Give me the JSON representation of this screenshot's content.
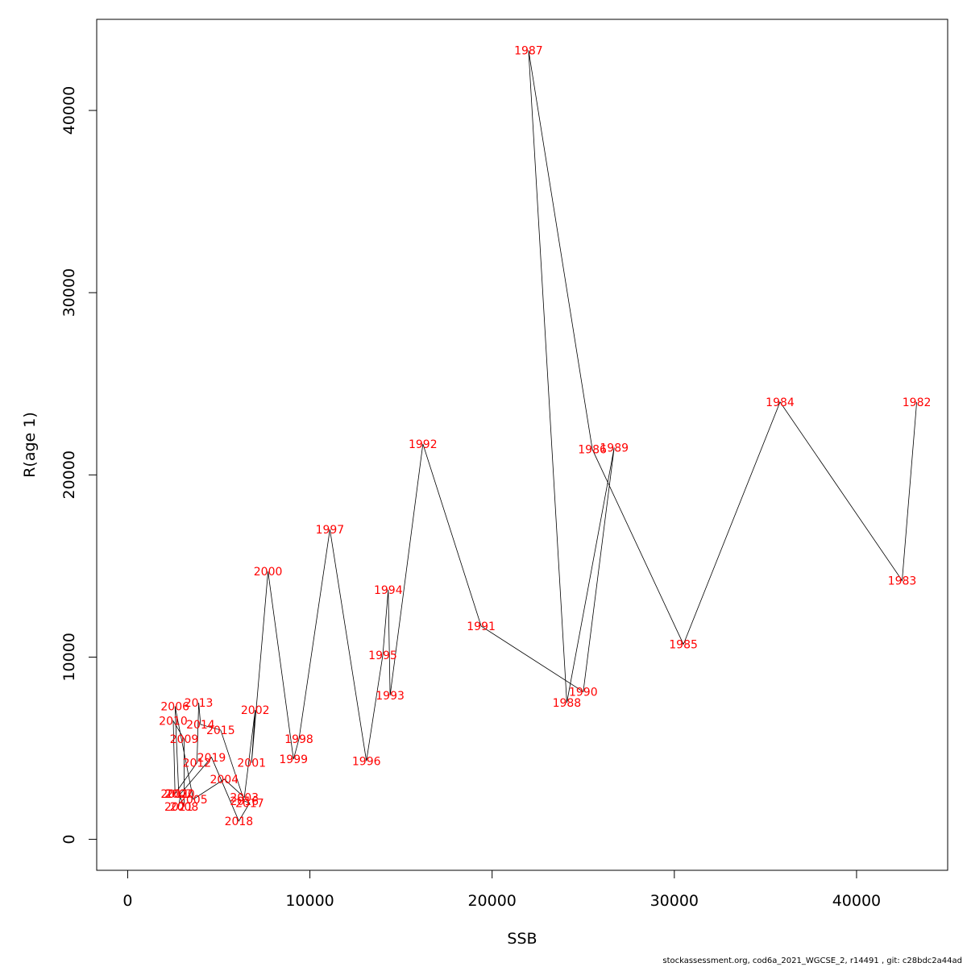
{
  "footer": "stockassessment.org, cod6a_2021_WGCSE_2, r14491 , git: c28bdc2a44ad",
  "chart_data": {
    "type": "scatter",
    "xlabel": "SSB",
    "ylabel": "R(age 1)",
    "xlim": [
      -1700,
      45000
    ],
    "ylim": [
      -1700,
      45000
    ],
    "x_ticks": [
      0,
      10000,
      20000,
      30000,
      40000
    ],
    "y_ticks": [
      0,
      10000,
      20000,
      30000,
      40000
    ],
    "grid": false,
    "point_color": "#ff0000",
    "line_color": "#000000",
    "points": [
      {
        "year": "1982",
        "ssb": 43300,
        "r": 24000
      },
      {
        "year": "1983",
        "ssb": 42500,
        "r": 14200
      },
      {
        "year": "1984",
        "ssb": 35800,
        "r": 24000
      },
      {
        "year": "1985",
        "ssb": 30500,
        "r": 10700
      },
      {
        "year": "1986",
        "ssb": 25500,
        "r": 21400
      },
      {
        "year": "1987",
        "ssb": 22000,
        "r": 43300
      },
      {
        "year": "1988",
        "ssb": 24100,
        "r": 7500
      },
      {
        "year": "1989",
        "ssb": 26700,
        "r": 21500
      },
      {
        "year": "1990",
        "ssb": 25000,
        "r": 8100
      },
      {
        "year": "1991",
        "ssb": 19400,
        "r": 11700
      },
      {
        "year": "1992",
        "ssb": 16200,
        "r": 21700
      },
      {
        "year": "1993",
        "ssb": 14400,
        "r": 7900
      },
      {
        "year": "1994",
        "ssb": 14300,
        "r": 13700
      },
      {
        "year": "1995",
        "ssb": 14000,
        "r": 10100
      },
      {
        "year": "1996",
        "ssb": 13100,
        "r": 4300
      },
      {
        "year": "1997",
        "ssb": 11100,
        "r": 17000
      },
      {
        "year": "1998",
        "ssb": 9400,
        "r": 5500
      },
      {
        "year": "1999",
        "ssb": 9100,
        "r": 4400
      },
      {
        "year": "2000",
        "ssb": 7700,
        "r": 14700
      },
      {
        "year": "2001",
        "ssb": 6800,
        "r": 4200
      },
      {
        "year": "2002",
        "ssb": 7000,
        "r": 7100
      },
      {
        "year": "2003",
        "ssb": 6400,
        "r": 2300
      },
      {
        "year": "2004",
        "ssb": 5300,
        "r": 3300
      },
      {
        "year": "2005",
        "ssb": 3600,
        "r": 2200
      },
      {
        "year": "2006",
        "ssb": 2600,
        "r": 7300
      },
      {
        "year": "2007",
        "ssb": 2800,
        "r": 2500
      },
      {
        "year": "2008",
        "ssb": 3100,
        "r": 1800
      },
      {
        "year": "2009",
        "ssb": 3100,
        "r": 5500
      },
      {
        "year": "2010",
        "ssb": 2500,
        "r": 6500
      },
      {
        "year": "2011",
        "ssb": 2600,
        "r": 2500
      },
      {
        "year": "2012",
        "ssb": 3800,
        "r": 4200
      },
      {
        "year": "2013",
        "ssb": 3900,
        "r": 7500
      },
      {
        "year": "2014",
        "ssb": 4000,
        "r": 6300
      },
      {
        "year": "2015",
        "ssb": 5100,
        "r": 6000
      },
      {
        "year": "2016",
        "ssb": 6400,
        "r": 2100
      },
      {
        "year": "2017",
        "ssb": 6700,
        "r": 2000
      },
      {
        "year": "2018",
        "ssb": 6100,
        "r": 1000
      },
      {
        "year": "2019",
        "ssb": 4600,
        "r": 4500
      },
      {
        "year": "2020",
        "ssb": 2900,
        "r": 2500
      },
      {
        "year": "2021",
        "ssb": 2800,
        "r": 1800
      }
    ]
  }
}
